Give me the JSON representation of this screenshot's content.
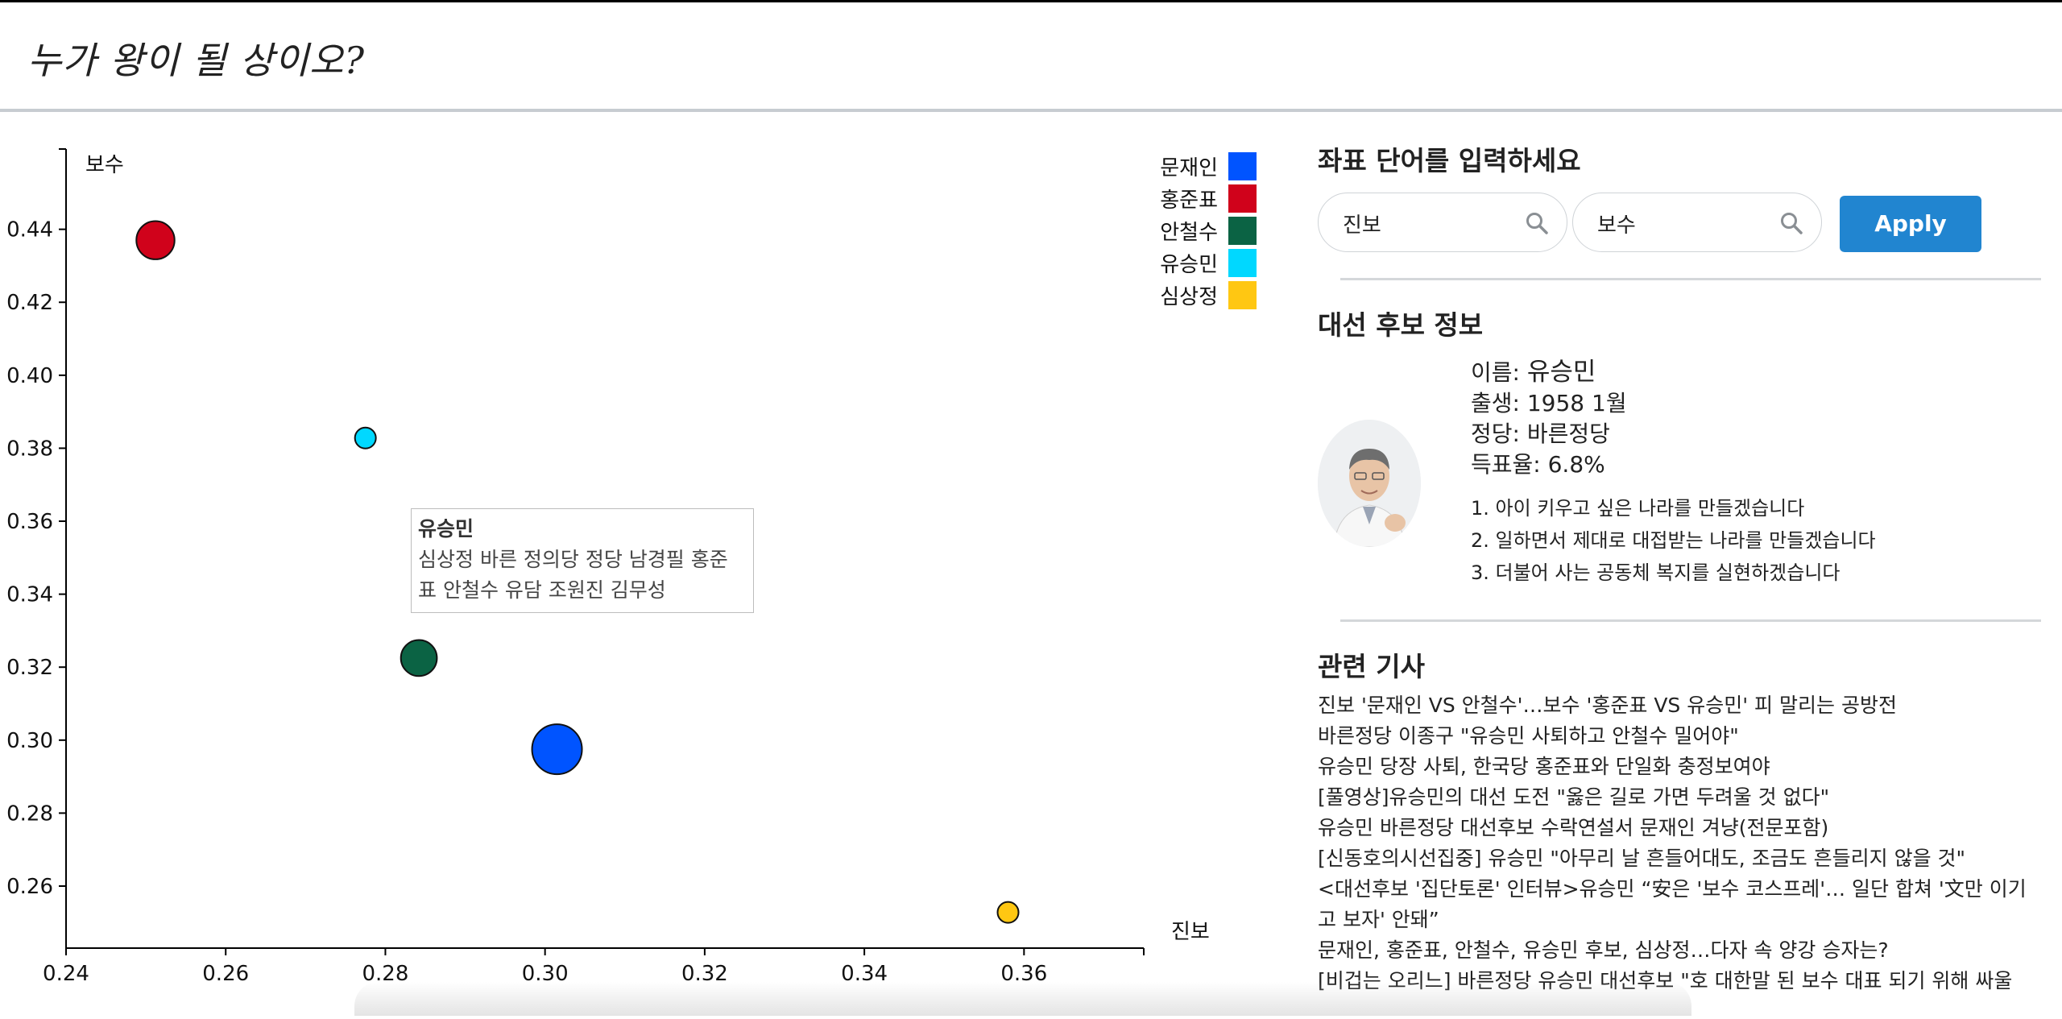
{
  "header": {
    "title": "누가 왕이 될 상이오?"
  },
  "chart_data": {
    "type": "scatter",
    "xlabel": "진보",
    "ylabel": "보수",
    "xlim": [
      0.24,
      0.375
    ],
    "ylim": [
      0.243,
      0.462
    ],
    "x_ticks": [
      0.24,
      0.26,
      0.28,
      0.3,
      0.32,
      0.34,
      0.36
    ],
    "y_ticks": [
      0.26,
      0.28,
      0.3,
      0.32,
      0.34,
      0.36,
      0.38,
      0.4,
      0.42,
      0.44
    ],
    "legend_position": "top-right",
    "series": [
      {
        "name": "문재인",
        "color": "#0054ff",
        "x": 0.3015,
        "y": 0.2975,
        "size": 41.1
      },
      {
        "name": "홍준표",
        "color": "#d0021b",
        "x": 0.2512,
        "y": 0.437,
        "size": 24.0
      },
      {
        "name": "안철수",
        "color": "#0b6344",
        "x": 0.2842,
        "y": 0.3225,
        "size": 21.4
      },
      {
        "name": "유승민",
        "color": "#00d8ff",
        "x": 0.2775,
        "y": 0.3828,
        "size": 6.8
      },
      {
        "name": "심상정",
        "color": "#ffc712",
        "x": 0.358,
        "y": 0.2528,
        "size": 6.2
      }
    ]
  },
  "tooltip": {
    "name": "유승민",
    "line1": "심상정 바른 정의당 정당 남경필 홍준",
    "line2": "표 안철수 유담 조원진 김무성"
  },
  "panel": {
    "coord_title": "좌표 단어를 입력하세요",
    "input_x": "진보",
    "input_y": "보수",
    "apply_label": "Apply",
    "info_title": "대선 후보 정보",
    "name_label": "이름: ",
    "name_value": "유승민",
    "birth": "출생: 1958 1월",
    "party": "정당: 바른정당",
    "vote": "득표율: 6.8%",
    "pledges": [
      "1. 아이 키우고 싶은 나라를 만들겠습니다",
      "2. 일하면서 제대로 대접받는 나라를 만들겠습니다",
      "3. 더불어 사는 공동체 복지를 실현하겠습니다"
    ],
    "news_title": "관련 기사",
    "news": [
      "진보 '문재인 VS 안철수'…보수 '홍준표 VS 유승민' 피 말리는 공방전",
      "바른정당 이종구 \"유승민 사퇴하고 안철수 밀어야\"",
      "유승민 당장 사퇴, 한국당 홍준표와 단일화 충정보여야",
      "[풀영상]유승민의 대선 도전 \"옳은 길로 가면 두려울 것 없다\"",
      "유승민 바른정당 대선후보 수락연설서 문재인 겨냥(전문포함)",
      "[신동호의시선집중] 유승민 \"아무리 날 흔들어대도, 조금도 흔들리지 않을 것\"",
      "<대선후보 '집단토론' 인터뷰>유승민 “安은 '보수 코스프레'… 일단 합쳐 '文만 이기고 보자' 안돼”",
      "문재인, 홍준표, 안철수, 유승민 후보, 심상정…다자 속 양강 승자는?",
      "[비겁는 오리느] 바른정당 유승민 대선후보 \"호 대한말 된 보수 대표 되기 위해 싸울"
    ]
  }
}
